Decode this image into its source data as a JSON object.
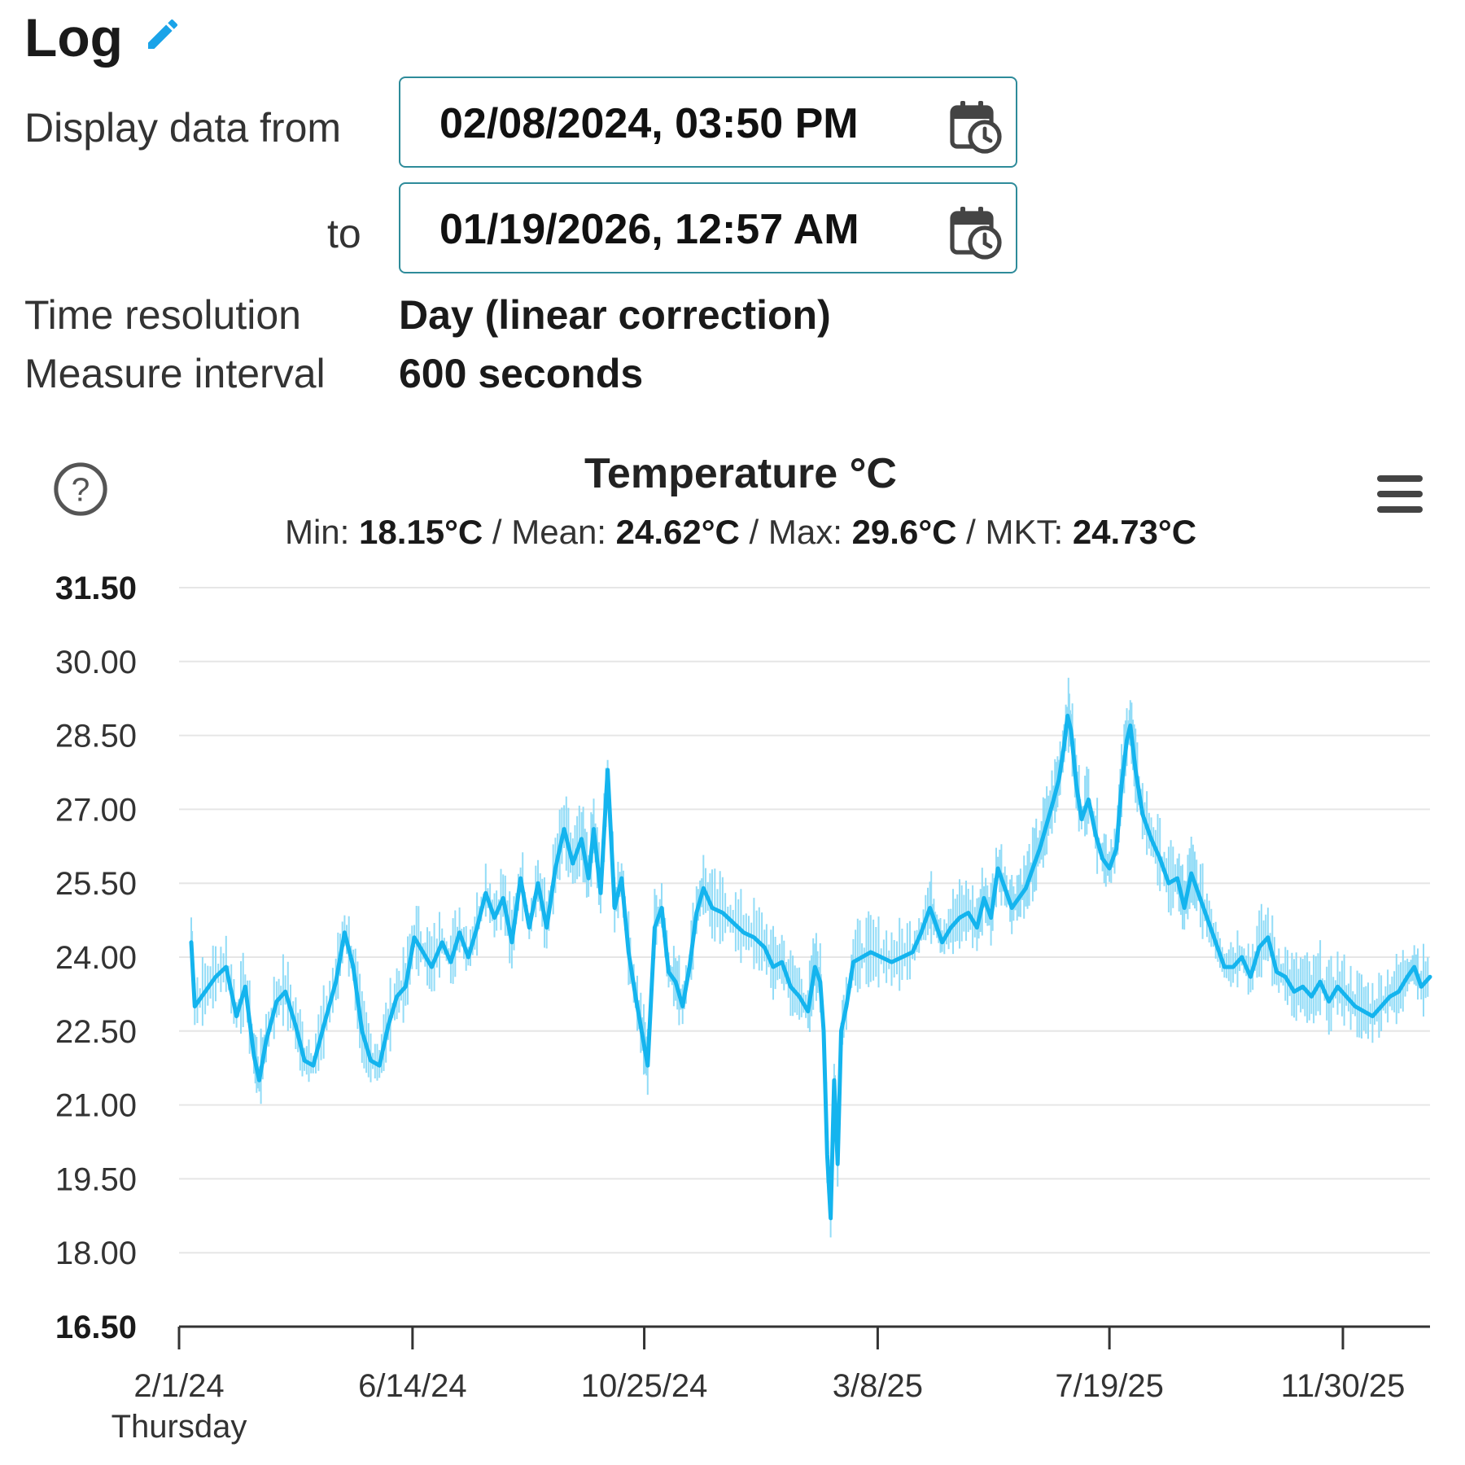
{
  "header": {
    "title": "Log"
  },
  "form": {
    "from_label": "Display data from",
    "from_value": "02/08/2024, 03:50 PM",
    "to_label": "to",
    "to_value": "01/19/2026, 12:57 AM",
    "resolution_label": "Time resolution",
    "resolution_value": "Day (linear correction)",
    "interval_label": "Measure interval",
    "interval_value": "600 seconds"
  },
  "stats": {
    "min_label": "Min:",
    "min_value": "18.15°C",
    "mean_label": "Mean:",
    "mean_value": "24.62°C",
    "max_label": "Max:",
    "max_value": "29.6°C",
    "mkt_label": "MKT:",
    "mkt_value": "24.73°C",
    "separator": " / "
  },
  "icons": {
    "edit": "pencil-icon",
    "calendar": "calendar-clock-icon",
    "help": "help-icon",
    "menu": "menu-icon"
  },
  "colors": {
    "series": "#14b4ee",
    "band": "#7fd6f6",
    "accent": "#1aa3e8",
    "border": "#2e8b9a"
  },
  "chart_data": {
    "type": "line",
    "title": "Temperature °C",
    "ylim": [
      16.5,
      31.5
    ],
    "y_ticks": [
      "31.50",
      "30.00",
      "28.50",
      "27.00",
      "25.50",
      "24.00",
      "22.50",
      "21.00",
      "19.50",
      "18.00",
      "16.50"
    ],
    "x_range": [
      "2024-02-01",
      "2026-01-19"
    ],
    "x_ticks": [
      {
        "date": "2024-02-01",
        "label": "2/1/24",
        "sublabel": "Thursday"
      },
      {
        "date": "2024-06-14",
        "label": "6/14/24"
      },
      {
        "date": "2024-10-25",
        "label": "10/25/24"
      },
      {
        "date": "2025-03-08",
        "label": "3/8/25"
      },
      {
        "date": "2025-07-19",
        "label": "7/19/25"
      },
      {
        "date": "2025-11-30",
        "label": "11/30/25"
      }
    ],
    "grid": true,
    "series": [
      {
        "points": [
          [
            "2024-02-08",
            24.3
          ],
          [
            "2024-02-10",
            23.0
          ],
          [
            "2024-02-16",
            23.3
          ],
          [
            "2024-02-22",
            23.6
          ],
          [
            "2024-02-28",
            23.8
          ],
          [
            "2024-03-05",
            22.8
          ],
          [
            "2024-03-10",
            23.4
          ],
          [
            "2024-03-15",
            22.0
          ],
          [
            "2024-03-18",
            21.5
          ],
          [
            "2024-03-22",
            22.3
          ],
          [
            "2024-03-28",
            23.1
          ],
          [
            "2024-04-02",
            23.3
          ],
          [
            "2024-04-08",
            22.6
          ],
          [
            "2024-04-13",
            21.9
          ],
          [
            "2024-04-18",
            21.8
          ],
          [
            "2024-04-24",
            22.6
          ],
          [
            "2024-05-01",
            23.5
          ],
          [
            "2024-05-06",
            24.5
          ],
          [
            "2024-05-11",
            23.8
          ],
          [
            "2024-05-16",
            22.5
          ],
          [
            "2024-05-21",
            21.9
          ],
          [
            "2024-05-26",
            21.8
          ],
          [
            "2024-05-31",
            22.6
          ],
          [
            "2024-06-05",
            23.2
          ],
          [
            "2024-06-10",
            23.4
          ],
          [
            "2024-06-15",
            24.4
          ],
          [
            "2024-06-20",
            24.1
          ],
          [
            "2024-06-25",
            23.8
          ],
          [
            "2024-07-01",
            24.3
          ],
          [
            "2024-07-06",
            23.9
          ],
          [
            "2024-07-11",
            24.5
          ],
          [
            "2024-07-16",
            24.0
          ],
          [
            "2024-07-21",
            24.6
          ],
          [
            "2024-07-26",
            25.3
          ],
          [
            "2024-07-31",
            24.8
          ],
          [
            "2024-08-05",
            25.2
          ],
          [
            "2024-08-10",
            24.3
          ],
          [
            "2024-08-15",
            25.6
          ],
          [
            "2024-08-20",
            24.6
          ],
          [
            "2024-08-25",
            25.5
          ],
          [
            "2024-08-30",
            24.6
          ],
          [
            "2024-09-04",
            25.8
          ],
          [
            "2024-09-09",
            26.6
          ],
          [
            "2024-09-14",
            25.9
          ],
          [
            "2024-09-19",
            26.4
          ],
          [
            "2024-09-23",
            25.6
          ],
          [
            "2024-09-26",
            26.6
          ],
          [
            "2024-09-30",
            25.3
          ],
          [
            "2024-10-04",
            27.8
          ],
          [
            "2024-10-08",
            25.0
          ],
          [
            "2024-10-12",
            25.6
          ],
          [
            "2024-10-16",
            24.1
          ],
          [
            "2024-10-20",
            23.2
          ],
          [
            "2024-10-24",
            22.4
          ],
          [
            "2024-10-27",
            21.8
          ],
          [
            "2024-10-31",
            24.6
          ],
          [
            "2024-11-04",
            25.0
          ],
          [
            "2024-11-08",
            23.7
          ],
          [
            "2024-11-12",
            23.5
          ],
          [
            "2024-11-16",
            23.0
          ],
          [
            "2024-11-20",
            23.8
          ],
          [
            "2024-11-24",
            24.9
          ],
          [
            "2024-11-28",
            25.4
          ],
          [
            "2024-12-03",
            25.0
          ],
          [
            "2024-12-09",
            24.9
          ],
          [
            "2024-12-15",
            24.7
          ],
          [
            "2024-12-21",
            24.5
          ],
          [
            "2024-12-27",
            24.4
          ],
          [
            "2025-01-02",
            24.2
          ],
          [
            "2025-01-07",
            23.8
          ],
          [
            "2025-01-12",
            23.9
          ],
          [
            "2025-01-17",
            23.4
          ],
          [
            "2025-01-22",
            23.2
          ],
          [
            "2025-01-27",
            22.9
          ],
          [
            "2025-01-31",
            23.8
          ],
          [
            "2025-02-03",
            23.5
          ],
          [
            "2025-02-05",
            22.5
          ],
          [
            "2025-02-07",
            20.0
          ],
          [
            "2025-02-09",
            18.7
          ],
          [
            "2025-02-11",
            21.5
          ],
          [
            "2025-02-13",
            19.8
          ],
          [
            "2025-02-15",
            22.5
          ],
          [
            "2025-02-18",
            23.0
          ],
          [
            "2025-02-22",
            23.9
          ],
          [
            "2025-02-27",
            24.0
          ],
          [
            "2025-03-04",
            24.1
          ],
          [
            "2025-03-10",
            24.0
          ],
          [
            "2025-03-16",
            23.9
          ],
          [
            "2025-03-22",
            24.0
          ],
          [
            "2025-03-28",
            24.1
          ],
          [
            "2025-04-02",
            24.5
          ],
          [
            "2025-04-07",
            25.0
          ],
          [
            "2025-04-10",
            24.7
          ],
          [
            "2025-04-14",
            24.3
          ],
          [
            "2025-04-19",
            24.6
          ],
          [
            "2025-04-24",
            24.8
          ],
          [
            "2025-04-29",
            24.9
          ],
          [
            "2025-05-04",
            24.6
          ],
          [
            "2025-05-08",
            25.2
          ],
          [
            "2025-05-12",
            24.8
          ],
          [
            "2025-05-16",
            25.8
          ],
          [
            "2025-05-20",
            25.4
          ],
          [
            "2025-05-24",
            25.0
          ],
          [
            "2025-05-28",
            25.2
          ],
          [
            "2025-06-01",
            25.4
          ],
          [
            "2025-06-05",
            25.8
          ],
          [
            "2025-06-09",
            26.2
          ],
          [
            "2025-06-13",
            26.7
          ],
          [
            "2025-06-17",
            27.2
          ],
          [
            "2025-06-20",
            27.6
          ],
          [
            "2025-06-23",
            28.3
          ],
          [
            "2025-06-25",
            28.9
          ],
          [
            "2025-06-27",
            28.6
          ],
          [
            "2025-06-30",
            27.5
          ],
          [
            "2025-07-03",
            26.8
          ],
          [
            "2025-07-07",
            27.2
          ],
          [
            "2025-07-11",
            26.5
          ],
          [
            "2025-07-15",
            26.0
          ],
          [
            "2025-07-19",
            25.8
          ],
          [
            "2025-07-23",
            26.2
          ],
          [
            "2025-07-26",
            27.5
          ],
          [
            "2025-07-29",
            28.4
          ],
          [
            "2025-07-31",
            28.7
          ],
          [
            "2025-08-03",
            27.8
          ],
          [
            "2025-08-07",
            26.9
          ],
          [
            "2025-08-12",
            26.4
          ],
          [
            "2025-08-17",
            26.0
          ],
          [
            "2025-08-22",
            25.5
          ],
          [
            "2025-08-27",
            25.6
          ],
          [
            "2025-08-31",
            25.0
          ],
          [
            "2025-09-04",
            25.7
          ],
          [
            "2025-09-08",
            25.3
          ],
          [
            "2025-09-13",
            24.8
          ],
          [
            "2025-09-18",
            24.3
          ],
          [
            "2025-09-23",
            23.8
          ],
          [
            "2025-09-28",
            23.8
          ],
          [
            "2025-10-03",
            24.0
          ],
          [
            "2025-10-08",
            23.6
          ],
          [
            "2025-10-13",
            24.2
          ],
          [
            "2025-10-18",
            24.4
          ],
          [
            "2025-10-23",
            23.7
          ],
          [
            "2025-10-28",
            23.6
          ],
          [
            "2025-11-02",
            23.3
          ],
          [
            "2025-11-07",
            23.4
          ],
          [
            "2025-11-12",
            23.2
          ],
          [
            "2025-11-17",
            23.5
          ],
          [
            "2025-11-22",
            23.1
          ],
          [
            "2025-11-27",
            23.4
          ],
          [
            "2025-12-02",
            23.2
          ],
          [
            "2025-12-07",
            23.0
          ],
          [
            "2025-12-12",
            22.9
          ],
          [
            "2025-12-17",
            22.8
          ],
          [
            "2025-12-22",
            23.0
          ],
          [
            "2025-12-27",
            23.2
          ],
          [
            "2026-01-01",
            23.3
          ],
          [
            "2026-01-06",
            23.6
          ],
          [
            "2026-01-10",
            23.8
          ],
          [
            "2026-01-14",
            23.4
          ],
          [
            "2026-01-19",
            23.6
          ]
        ]
      }
    ]
  }
}
